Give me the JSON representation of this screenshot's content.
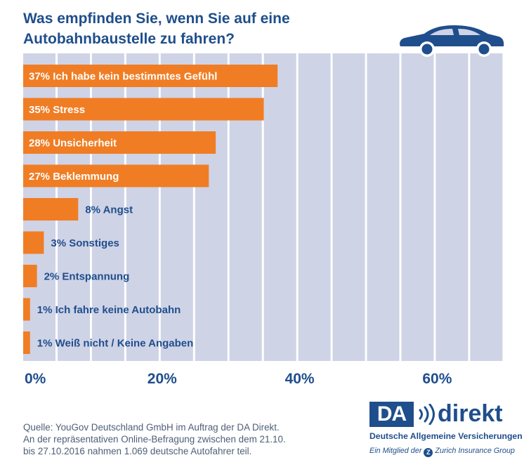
{
  "title_lines": [
    "Was empfinden Sie, wenn Sie auf eine",
    "Autobahnbaustelle zu fahren?"
  ],
  "chart_data": {
    "type": "bar",
    "orientation": "horizontal",
    "title": "Was empfinden Sie, wenn Sie auf eine Autobahnbaustelle zu fahren?",
    "categories": [
      "Ich habe kein bestimmtes Gefühl",
      "Stress",
      "Unsicherheit",
      "Beklemmung",
      "Angst",
      "Sonstiges",
      "Entspannung",
      "Ich fahre keine Autobahn",
      "Weiß nicht / Keine Angaben"
    ],
    "values": [
      37,
      35,
      28,
      27,
      8,
      3,
      2,
      1,
      1
    ],
    "value_unit": "%",
    "xlim": [
      0,
      70
    ],
    "x_ticks": [
      0,
      20,
      40,
      60
    ],
    "x_tick_labels": [
      "0%",
      "20%",
      "40%",
      "60%"
    ],
    "grid": true,
    "bar_color": "#f07d24",
    "grid_band_color": "#cfd3e6",
    "label_color_inside": "#ffffff",
    "label_color_outside": "#1f4e8c"
  },
  "source_lines": [
    "Quelle: YouGov Deutschland GmbH im Auftrag der DA Direkt.",
    "An der repräsentativen Online-Befragung zwischen dem 21.10.",
    "bis 27.10.2016 nahmen 1.069 deutsche Autofahrer teil."
  ],
  "logo": {
    "box_text": "DA",
    "word": "direkt",
    "tagline": "Deutsche Allgemeine Versicherungen",
    "member_prefix": "Ein Mitglied der",
    "z_letter": "Z",
    "member_suffix": "Zurich Insurance Group"
  },
  "icons": {
    "decoration": "car-icon"
  },
  "colors": {
    "brand": "#1f4e8c",
    "accent": "#f07d24"
  }
}
